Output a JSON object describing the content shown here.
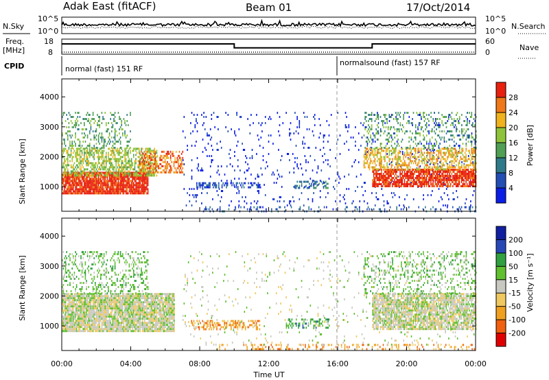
{
  "header": {
    "station": "Adak East (fitACF)",
    "beam": "Beam 01",
    "date": "17/Oct/2014"
  },
  "colors": {
    "power_scale": [
      "#0a1ee6",
      "#234fb4",
      "#2f7a8a",
      "#4f9f55",
      "#8fc43a",
      "#f0b21e",
      "#f07818",
      "#e8200e"
    ],
    "velocity_scale": [
      "#e00000",
      "#f06010",
      "#f0a020",
      "#f0c860",
      "#c8c8c0",
      "#60c030",
      "#30a040",
      "#2848b8",
      "#1020a0"
    ]
  },
  "chart_data": [
    {
      "type": "line",
      "panel": "noise",
      "left_labels": [
        "N.Sky"
      ],
      "right_labels": [
        "N.Search"
      ],
      "y_ticks_left": [
        "10^5",
        "10^0"
      ],
      "y_ticks_right": [
        "10^5",
        "10^0"
      ],
      "scale": "log"
    },
    {
      "type": "line",
      "panel": "frequency",
      "left_labels": [
        "Freq.",
        "[MHz]"
      ],
      "right_labels": [
        "Nave"
      ],
      "y_ticks_left": [
        "18",
        "8"
      ],
      "y_ticks_right": [
        "60",
        "0"
      ],
      "ylim": [
        8,
        18
      ],
      "series": [
        {
          "x_hours": [
            0,
            10,
            10,
            18,
            18,
            24
          ],
          "values": [
            14.8,
            14.8,
            12.2,
            12.2,
            14.8,
            14.8
          ]
        }
      ]
    },
    {
      "type": "table",
      "panel": "cpid",
      "label": "CPID",
      "segments": [
        {
          "start_hour": 0,
          "text": "normal (fast) 151 RF"
        },
        {
          "start_hour": 16,
          "text": "normalsound (fast) 157 RF"
        }
      ],
      "divider_hour": 16
    },
    {
      "type": "heatmap",
      "panel": "power",
      "ylabel": "Slant Range [km]",
      "y_ticks": [
        1000,
        2000,
        3000,
        4000
      ],
      "ylim": [
        180,
        4600
      ],
      "colorbar_label": "Power [dB]",
      "colorbar_ticks": [
        4,
        8,
        12,
        16,
        20,
        24,
        28
      ],
      "colorbar_range": [
        0,
        32
      ],
      "regions": [
        {
          "t": [
            0.0,
            5.0
          ],
          "r": [
            800,
            1500
          ],
          "level": 7,
          "density": 0.9
        },
        {
          "t": [
            0.0,
            5.5
          ],
          "r": [
            1400,
            2300
          ],
          "level": 4,
          "density": 0.55
        },
        {
          "t": [
            0.0,
            4.0
          ],
          "r": [
            2300,
            3500
          ],
          "level": 3,
          "density": 0.25
        },
        {
          "t": [
            4.5,
            7.0
          ],
          "r": [
            1500,
            2200
          ],
          "level": 6,
          "density": 0.5
        },
        {
          "t": [
            7.8,
            11.5
          ],
          "r": [
            950,
            1150
          ],
          "level": 1,
          "density": 0.4
        },
        {
          "t": [
            13.5,
            15.5
          ],
          "r": [
            950,
            1200
          ],
          "level": 2,
          "density": 0.4
        },
        {
          "t": [
            8.0,
            24.0
          ],
          "r": [
            200,
            350
          ],
          "level": 1,
          "density": 0.2
        },
        {
          "t": [
            7.0,
            24.0
          ],
          "r": [
            400,
            3500
          ],
          "level": 0,
          "density": 0.05
        },
        {
          "t": [
            18.0,
            24.0
          ],
          "r": [
            1000,
            1600
          ],
          "level": 7,
          "density": 0.8
        },
        {
          "t": [
            17.5,
            24.0
          ],
          "r": [
            1600,
            2300
          ],
          "level": 5,
          "density": 0.5
        },
        {
          "t": [
            17.5,
            24.0
          ],
          "r": [
            2300,
            3500
          ],
          "level": 3,
          "density": 0.2
        }
      ]
    },
    {
      "type": "heatmap",
      "panel": "velocity",
      "ylabel": "Slant Range [km]",
      "xlabel": "Time UT",
      "y_ticks": [
        1000,
        2000,
        3000,
        4000
      ],
      "ylim": [
        180,
        4600
      ],
      "x_ticks": [
        "00:00",
        "04:00",
        "08:00",
        "12:00",
        "16:00",
        "20:00",
        "00:00"
      ],
      "x_range_hours": [
        0,
        24
      ],
      "colorbar_label": "Velocity [m s⁻¹]",
      "colorbar_ticks": [
        200,
        100,
        50,
        15,
        -15,
        -50,
        -100,
        -200
      ],
      "regions": [
        {
          "t": [
            0.0,
            6.5
          ],
          "r": [
            800,
            2100
          ],
          "level": 4,
          "density": 0.9
        },
        {
          "t": [
            0.0,
            5.0
          ],
          "r": [
            2100,
            3500
          ],
          "level": 5,
          "density": 0.25
        },
        {
          "t": [
            7.5,
            11.5
          ],
          "r": [
            900,
            1200
          ],
          "level": 2,
          "density": 0.45
        },
        {
          "t": [
            13.0,
            15.5
          ],
          "r": [
            950,
            1250
          ],
          "level": 6,
          "density": 0.4
        },
        {
          "t": [
            9.0,
            24.0
          ],
          "r": [
            200,
            400
          ],
          "level": 2,
          "density": 0.25
        },
        {
          "t": [
            7.0,
            24.0
          ],
          "r": [
            400,
            3500
          ],
          "level": 4,
          "density": 0.04
        },
        {
          "t": [
            18.0,
            24.0
          ],
          "r": [
            900,
            2100
          ],
          "level": 4,
          "density": 0.8
        },
        {
          "t": [
            17.5,
            24.0
          ],
          "r": [
            2100,
            3500
          ],
          "level": 5,
          "density": 0.2
        }
      ]
    }
  ]
}
